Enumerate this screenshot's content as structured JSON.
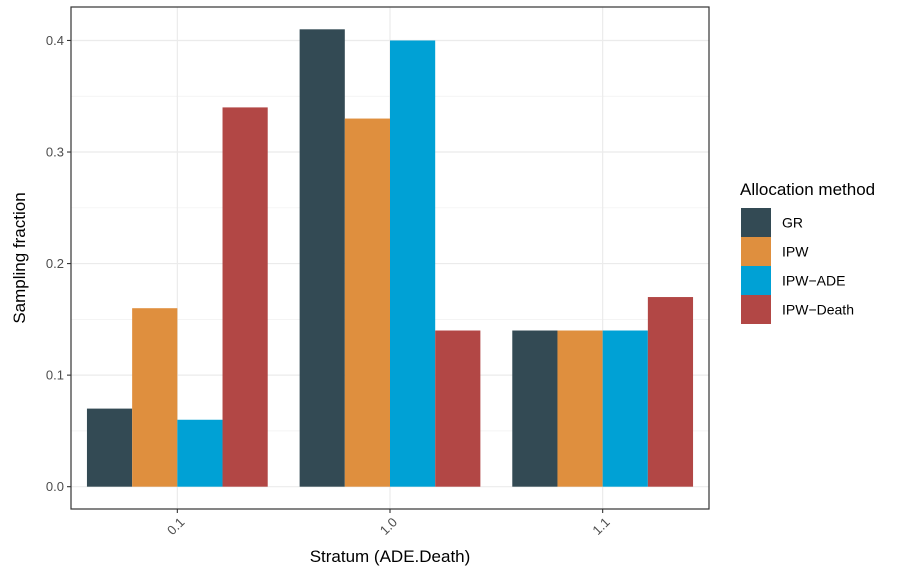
{
  "chart_data": {
    "type": "bar",
    "categories": [
      "0.1",
      "1.0",
      "1.1"
    ],
    "series": [
      {
        "name": "GR",
        "values": [
          0.07,
          0.41,
          0.14
        ],
        "color": "#334a54"
      },
      {
        "name": "IPW",
        "values": [
          0.16,
          0.33,
          0.14
        ],
        "color": "#df8f3e"
      },
      {
        "name": "IPW−ADE",
        "values": [
          0.06,
          0.4,
          0.14
        ],
        "color": "#00a1d5"
      },
      {
        "name": "IPW−Death",
        "values": [
          0.34,
          0.14,
          0.17
        ],
        "color": "#b24745"
      }
    ],
    "xlabel": "Stratum (ADE.Death)",
    "ylabel": "Sampling fraction",
    "ylim": [
      -0.02,
      0.43
    ],
    "yticks": [
      0.0,
      0.1,
      0.2,
      0.3,
      0.4
    ],
    "ytick_labels": [
      "0.0",
      "0.1",
      "0.2",
      "0.3",
      "0.4"
    ],
    "legend_title": "Allocation method",
    "legend_position": "right",
    "grid": true
  }
}
